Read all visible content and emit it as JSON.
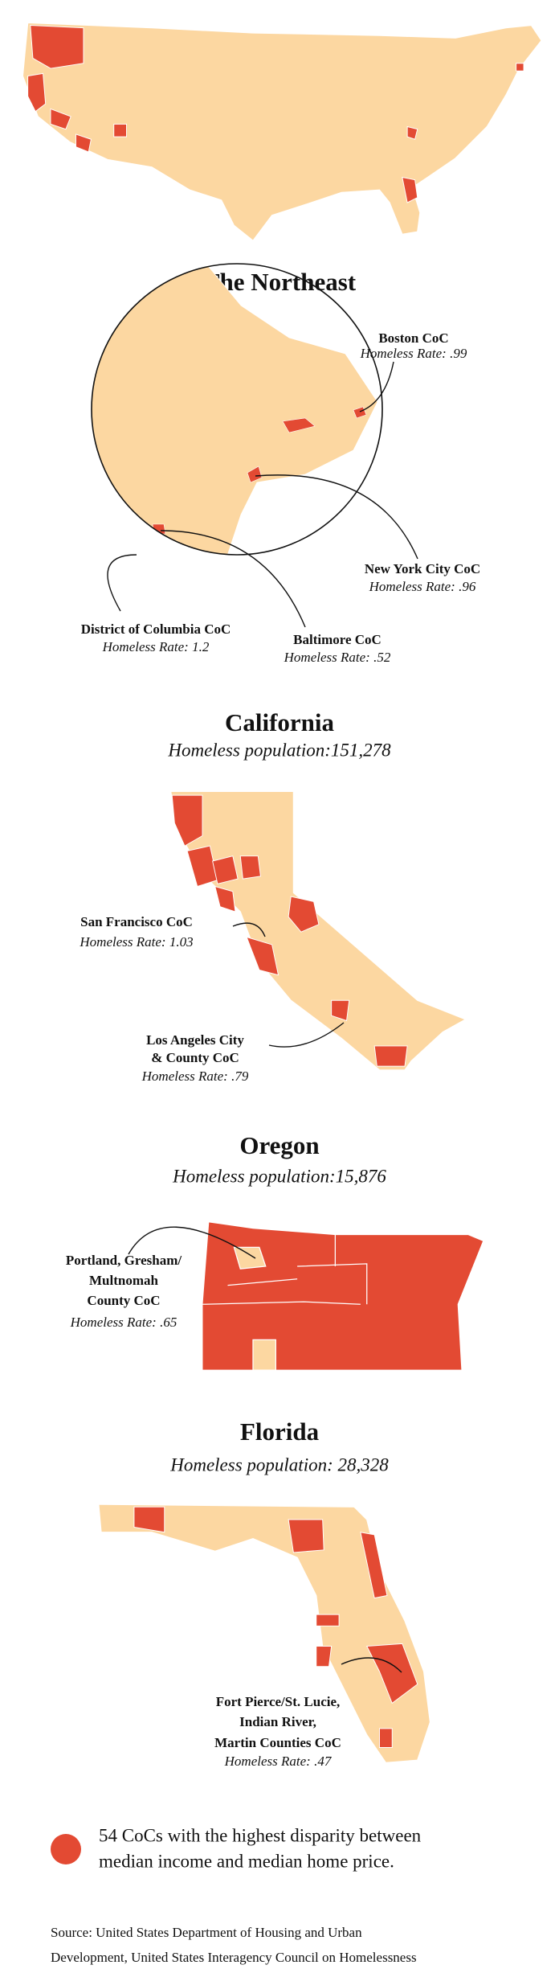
{
  "sections": [
    {
      "title": "The Northeast",
      "callouts": [
        {
          "name_lines": [
            "Boston CoC"
          ],
          "rate": "Homeless Rate: .99"
        },
        {
          "name_lines": [
            "New York City CoC"
          ],
          "rate": "Homeless Rate: .96"
        },
        {
          "name_lines": [
            "District of Columbia CoC"
          ],
          "rate": "Homeless Rate: 1.2"
        },
        {
          "name_lines": [
            "Baltimore CoC"
          ],
          "rate": "Homeless Rate: .52"
        }
      ]
    },
    {
      "title": "California",
      "subtitle": "Homeless population:151,278",
      "callouts": [
        {
          "name_lines": [
            "San Francisco CoC"
          ],
          "rate": "Homeless Rate: 1.03"
        },
        {
          "name_lines": [
            "Los Angeles City",
            "& County CoC"
          ],
          "rate": "Homeless Rate: .79"
        }
      ]
    },
    {
      "title": "Oregon",
      "subtitle": "Homeless population:15,876",
      "callouts": [
        {
          "name_lines": [
            "Portland, Gresham/",
            "Multnomah",
            "County CoC"
          ],
          "rate": "Homeless Rate: .65"
        }
      ]
    },
    {
      "title": "Florida",
      "subtitle": "Homeless population: 28,328",
      "callouts": [
        {
          "name_lines": [
            "Fort Pierce/St. Lucie,",
            "Indian River,",
            "Martin Counties CoC"
          ],
          "rate": "Homeless Rate: .47"
        }
      ]
    }
  ],
  "legend": [
    "54 CoCs with the highest disparity between",
    "median income and median home price."
  ],
  "source": [
    "Source: United States Department of Housing and Urban",
    "Development, United States Interagency Council on Homelessness"
  ]
}
